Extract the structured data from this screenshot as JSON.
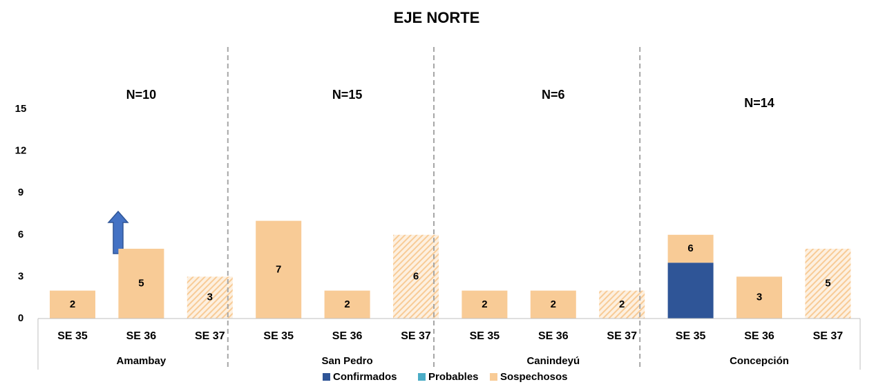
{
  "chart_data": {
    "type": "stacked_bar",
    "title": "EJE NORTE",
    "groups": [
      "Amambay",
      "San Pedro",
      "Canindeyú",
      "Concepción"
    ],
    "group_labels": [
      "N=10",
      "N=15",
      "N=6",
      "N=14"
    ],
    "categories": [
      "SE 35",
      "SE 36",
      "SE 37",
      "SE 35",
      "SE 36",
      "SE 37",
      "SE 35",
      "SE 36",
      "SE 37",
      "SE 35",
      "SE 36",
      "SE 37"
    ],
    "hatched": [
      false,
      false,
      true,
      false,
      false,
      true,
      false,
      false,
      true,
      false,
      false,
      true
    ],
    "series": [
      {
        "name": "Confirmados",
        "color": "#2f5597",
        "values": [
          0,
          0,
          0,
          0,
          0,
          0,
          0,
          0,
          0,
          4,
          0,
          0
        ]
      },
      {
        "name": "Probables",
        "color": "#4bacc6",
        "values": [
          0,
          0,
          0,
          0,
          0,
          0,
          0,
          0,
          0,
          0,
          0,
          0
        ]
      },
      {
        "name": "Sospechosos",
        "color": "#f8cb96",
        "values": [
          2,
          5,
          3,
          7,
          2,
          6,
          2,
          2,
          2,
          2,
          3,
          5
        ]
      }
    ],
    "total_labels": [
      2,
      5,
      3,
      7,
      2,
      6,
      2,
      2,
      2,
      6,
      3,
      5
    ],
    "ylim": [
      0,
      15
    ],
    "yticks": [
      0,
      3,
      6,
      9,
      12,
      15
    ],
    "grid": false,
    "legend": "bottom"
  }
}
